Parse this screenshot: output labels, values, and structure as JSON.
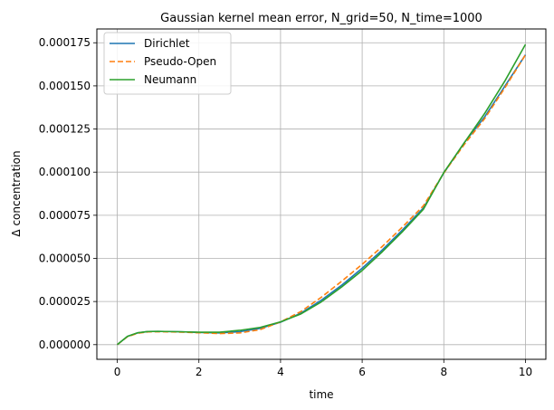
{
  "chart_data": {
    "type": "line",
    "title": "Gaussian kernel mean error, N_grid=50, N_time=1000",
    "xlabel": "time",
    "ylabel": "Δ concentration",
    "xlim": [
      -0.5,
      10.5
    ],
    "ylim": [
      -8.5e-06,
      0.000183
    ],
    "xticks": [
      0,
      2,
      4,
      6,
      8,
      10
    ],
    "xtick_labels": [
      "0",
      "2",
      "4",
      "6",
      "8",
      "10"
    ],
    "yticks": [
      0,
      2.5e-05,
      5e-05,
      7.5e-05,
      0.0001,
      0.000125,
      0.00015,
      0.000175
    ],
    "ytick_labels": [
      "0.000000",
      "0.000025",
      "0.000050",
      "0.000075",
      "0.000100",
      "0.000125",
      "0.000150",
      "0.000175"
    ],
    "grid": true,
    "legend_position": "upper-left",
    "x": [
      0,
      0.25,
      0.5,
      0.75,
      1,
      1.5,
      2,
      2.5,
      3,
      3.5,
      4,
      4.5,
      5,
      5.5,
      6,
      6.5,
      7,
      7.5,
      8,
      8.5,
      9,
      9.5,
      10
    ],
    "series": [
      {
        "name": "Dirichlet",
        "color": "#1f77b4",
        "dash": "solid",
        "values": [
          0,
          4.8e-06,
          6.8e-06,
          7.6e-06,
          7.7e-06,
          7.5e-06,
          7.1e-06,
          6.8e-06,
          7.5e-06,
          9.4e-06,
          1.3e-05,
          1.83e-05,
          2.58e-05,
          3.45e-05,
          4.43e-05,
          5.51e-05,
          6.68e-05,
          7.92e-05,
          9.95e-05,
          0.000117,
          0.000132,
          0.00015,
          0.000168
        ]
      },
      {
        "name": "Pseudo-Open",
        "color": "#ff7f0e",
        "dash": "dashed",
        "values": [
          0,
          4.6e-06,
          6.6e-06,
          7.4e-06,
          7.5e-06,
          7.3e-06,
          6.9e-06,
          6.4e-06,
          6.8e-06,
          8.7e-06,
          1.32e-05,
          1.92e-05,
          2.75e-05,
          3.68e-05,
          4.66e-05,
          5.71e-05,
          6.85e-05,
          8.05e-05,
          9.95e-05,
          0.000116,
          0.000131,
          0.000149,
          0.000168
        ]
      },
      {
        "name": "Neumann",
        "color": "#2ca02c",
        "dash": "solid",
        "values": [
          0,
          4.8e-06,
          6.9e-06,
          7.6e-06,
          7.7e-06,
          7.5e-06,
          7.2e-06,
          7.2e-06,
          8.3e-06,
          1e-05,
          1.32e-05,
          1.78e-05,
          2.48e-05,
          3.35e-05,
          4.3e-05,
          5.4e-05,
          6.58e-05,
          7.85e-05,
          9.98e-05,
          0.000117,
          0.000134,
          0.000153,
          0.000174
        ]
      }
    ]
  }
}
